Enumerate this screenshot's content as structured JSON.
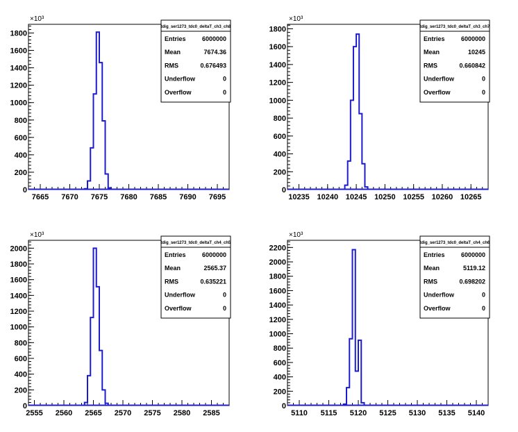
{
  "chart_data": [
    {
      "type": "histogram",
      "title": "tdig_ser1273_tdc0_deltaT_ch3_ch8",
      "exponent_label": "×10³",
      "xlim": [
        7663,
        7697
      ],
      "ylim": [
        0,
        1900
      ],
      "yticks": [
        0,
        200,
        400,
        600,
        800,
        1000,
        1200,
        1400,
        1600,
        1800
      ],
      "xticks": [
        7665,
        7670,
        7675,
        7680,
        7685,
        7690,
        7695
      ],
      "bin_width": 0.5,
      "bins": [
        [
          7672.5,
          10
        ],
        [
          7673.0,
          100
        ],
        [
          7673.5,
          480
        ],
        [
          7674.0,
          1100
        ],
        [
          7674.5,
          1810
        ],
        [
          7675.0,
          1460
        ],
        [
          7675.5,
          790
        ],
        [
          7676.0,
          180
        ],
        [
          7676.5,
          20
        ]
      ],
      "stats": {
        "Entries": "6000000",
        "Mean": "7674.36",
        "RMS": "0.676493",
        "Underflow": "0",
        "Overflow": "0"
      }
    },
    {
      "type": "histogram",
      "title": "tdig_ser1273_tdc0_deltaT_ch3_ch7",
      "exponent_label": "×10³",
      "xlim": [
        10233,
        10268
      ],
      "ylim": [
        0,
        1850
      ],
      "yticks": [
        0,
        200,
        400,
        600,
        800,
        1000,
        1200,
        1400,
        1600,
        1800
      ],
      "xticks": [
        10235,
        10240,
        10245,
        10250,
        10255,
        10260,
        10265
      ],
      "bin_width": 0.5,
      "bins": [
        [
          10243.0,
          50
        ],
        [
          10243.5,
          320
        ],
        [
          10244.0,
          1000
        ],
        [
          10244.5,
          1600
        ],
        [
          10245.0,
          1740
        ],
        [
          10245.5,
          850
        ],
        [
          10246.0,
          290
        ],
        [
          10246.5,
          30
        ]
      ],
      "stats": {
        "Entries": "6000000",
        "Mean": "10245",
        "RMS": "0.660842",
        "Underflow": "0",
        "Overflow": "0"
      }
    },
    {
      "type": "histogram",
      "title": "tdig_ser1273_tdc0_deltaT_ch4_ch5",
      "exponent_label": "×10³",
      "xlim": [
        2554,
        2588
      ],
      "ylim": [
        0,
        2100
      ],
      "yticks": [
        0,
        200,
        400,
        600,
        800,
        1000,
        1200,
        1400,
        1600,
        1800,
        2000
      ],
      "xticks": [
        2555,
        2560,
        2565,
        2570,
        2575,
        2580,
        2585
      ],
      "bin_width": 0.5,
      "bins": [
        [
          2563.5,
          40
        ],
        [
          2564.0,
          380
        ],
        [
          2564.5,
          1120
        ],
        [
          2565.0,
          2000
        ],
        [
          2565.5,
          1510
        ],
        [
          2566.0,
          700
        ],
        [
          2566.5,
          200
        ],
        [
          2567.0,
          30
        ]
      ],
      "stats": {
        "Entries": "6000000",
        "Mean": "2565.37",
        "RMS": "0.635221",
        "Underflow": "0",
        "Overflow": "0"
      }
    },
    {
      "type": "histogram",
      "title": "tdig_ser1273_tdc0_deltaT_ch4_ch6",
      "exponent_label": "×10³",
      "xlim": [
        5108,
        5142
      ],
      "ylim": [
        0,
        2300
      ],
      "yticks": [
        0,
        200,
        400,
        600,
        800,
        1000,
        1200,
        1400,
        1600,
        1800,
        2000,
        2200
      ],
      "xticks": [
        5110,
        5115,
        5120,
        5125,
        5130,
        5135,
        5140
      ],
      "bin_width": 0.5,
      "bins": [
        [
          5117.5,
          20
        ],
        [
          5118.0,
          250
        ],
        [
          5118.5,
          930
        ],
        [
          5119.0,
          2170
        ],
        [
          5119.5,
          480
        ],
        [
          5120.0,
          910
        ],
        [
          5120.5,
          40
        ]
      ],
      "stats": {
        "Entries": "6000000",
        "Mean": "5119.12",
        "RMS": "0.698202",
        "Underflow": "0",
        "Overflow": "0"
      }
    }
  ]
}
